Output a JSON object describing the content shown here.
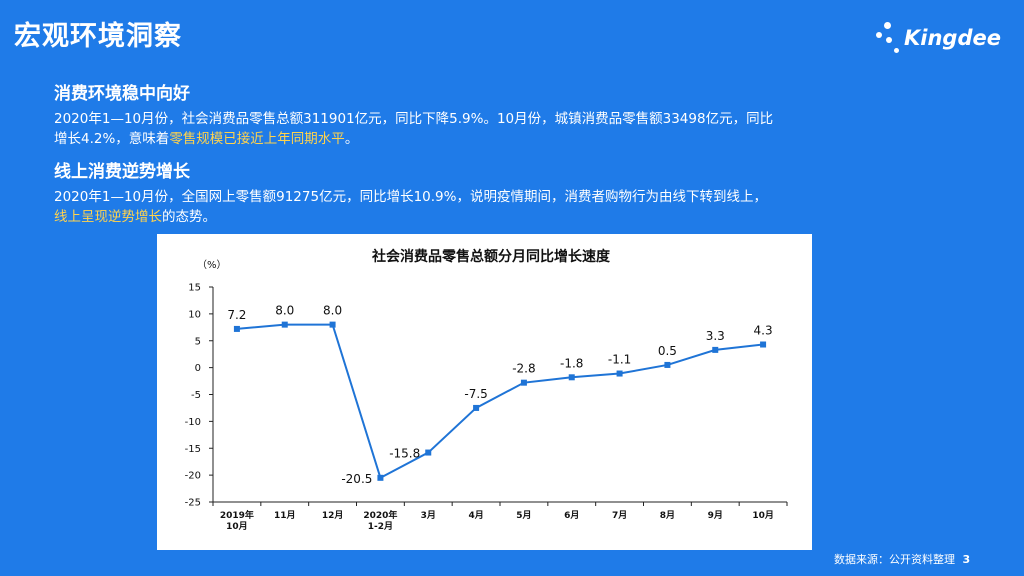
{
  "header": {
    "title": "宏观环境洞察",
    "logo_text": "Kingdee"
  },
  "section1": {
    "heading": "消费环境稳中向好",
    "line1": "2020年1—10月份，社会消费品零售总额311901亿元，同比下降5.9%。10月份，城镇消费品零售额33498亿元，同比",
    "line2_pre": "增长4.2%，意味着",
    "line2_hl": "零售规模已接近上年同期水平",
    "line2_post": "。"
  },
  "section2": {
    "heading": "线上消费逆势增长",
    "line1": "2020年1—10月份，全国网上零售额91275亿元，同比增长10.9%，说明疫情期间，消费者购物行为由线下转到线上，",
    "line2_hl": "线上呈现逆势增长",
    "line2_post": "的态势。"
  },
  "footer": {
    "source": "数据来源：公开资料整理",
    "page": "3"
  },
  "colors": {
    "background": "#1f7be8",
    "highlight": "#ffd34d",
    "series_line": "#1f74d6"
  },
  "chart_data": {
    "type": "line",
    "title": "社会消费品零售总额分月同比增长速度",
    "ylabel": "（%）",
    "ylim": [
      -25,
      15
    ],
    "yticks": [
      15,
      10,
      5,
      0,
      -5,
      -10,
      -15,
      -20,
      -25
    ],
    "categories": [
      [
        "2019年",
        "10月"
      ],
      [
        "11月"
      ],
      [
        "12月"
      ],
      [
        "2020年",
        "1-2月"
      ],
      [
        "3月"
      ],
      [
        "4月"
      ],
      [
        "5月"
      ],
      [
        "6月"
      ],
      [
        "7月"
      ],
      [
        "8月"
      ],
      [
        "9月"
      ],
      [
        "10月"
      ]
    ],
    "values": [
      7.2,
      8.0,
      8.0,
      -20.5,
      -15.8,
      -7.5,
      -2.8,
      -1.8,
      -1.1,
      0.5,
      3.3,
      4.3
    ],
    "labels": [
      "7.2",
      "8.0",
      "8.0",
      "-20.5",
      "-15.8",
      "-7.5",
      "-2.8",
      "-1.8",
      "-1.1",
      "0.5",
      "3.3",
      "4.3"
    ],
    "grid": false
  }
}
